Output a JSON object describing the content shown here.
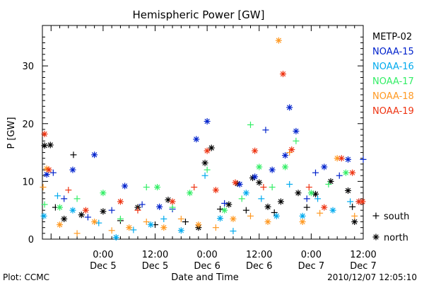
{
  "chart_data": {
    "type": "scatter",
    "title": "Hemispheric Power [GW]",
    "xlabel": "Date and Time",
    "ylabel": "P [GW]",
    "ylim": [
      0,
      37
    ],
    "xlim": [
      "2010-12-04 10:00",
      "2010-12-07 12:00"
    ],
    "xticks": [
      {
        "x": "2010-12-05 00:00",
        "time": "0:00",
        "day": "Dec 5"
      },
      {
        "x": "2010-12-05 12:00",
        "time": "12:00",
        "day": "Dec 5"
      },
      {
        "x": "2010-12-06 00:00",
        "time": "0:00",
        "day": "Dec 6"
      },
      {
        "x": "2010-12-06 12:00",
        "time": "12:00",
        "day": "Dec 6"
      },
      {
        "x": "2010-12-07 00:00",
        "time": "0:00",
        "day": "Dec 7"
      },
      {
        "x": "2010-12-07 12:00",
        "time": "12:00",
        "day": "Dec 7"
      }
    ],
    "yticks": [
      0,
      10,
      20,
      30
    ],
    "grid": false,
    "legend_position": "right",
    "marker_legend": [
      {
        "symbol": "+",
        "label": "south"
      },
      {
        "symbol": "*",
        "label": "north"
      }
    ],
    "series": [
      {
        "name": "METP-02",
        "color": "#000000",
        "points": [
          {
            "x": "2010-12-04 10:30",
            "y": 16.2,
            "m": "*"
          },
          {
            "x": "2010-12-04 11:50",
            "y": 16.3,
            "m": "*"
          },
          {
            "x": "2010-12-04 13:00",
            "y": 5.5,
            "m": "+"
          },
          {
            "x": "2010-12-04 15:00",
            "y": 3.5,
            "m": "*"
          },
          {
            "x": "2010-12-04 17:10",
            "y": 14.6,
            "m": "+"
          },
          {
            "x": "2010-12-04 19:00",
            "y": 4.2,
            "m": "*"
          },
          {
            "x": "2010-12-05 00:00",
            "y": 4.8,
            "m": "*"
          },
          {
            "x": "2010-12-05 04:00",
            "y": 3.2,
            "m": "+"
          },
          {
            "x": "2010-12-05 08:00",
            "y": 5.5,
            "m": "*"
          },
          {
            "x": "2010-12-05 12:00",
            "y": 2.5,
            "m": "+"
          },
          {
            "x": "2010-12-05 15:00",
            "y": 6.8,
            "m": "*"
          },
          {
            "x": "2010-12-05 19:00",
            "y": 3.0,
            "m": "+"
          },
          {
            "x": "2010-12-05 22:00",
            "y": 2.0,
            "m": "*"
          },
          {
            "x": "2010-12-05 23:30",
            "y": 13.2,
            "m": "*"
          },
          {
            "x": "2010-12-06 01:00",
            "y": 15.8,
            "m": "*"
          },
          {
            "x": "2010-12-06 03:00",
            "y": 5.2,
            "m": "+"
          },
          {
            "x": "2010-12-06 05:00",
            "y": 6.0,
            "m": "*"
          },
          {
            "x": "2010-12-06 07:00",
            "y": 9.6,
            "m": "*"
          },
          {
            "x": "2010-12-06 09:00",
            "y": 5.0,
            "m": "+"
          },
          {
            "x": "2010-12-06 10:30",
            "y": 10.6,
            "m": "*"
          },
          {
            "x": "2010-12-06 12:00",
            "y": 9.8,
            "m": "*"
          },
          {
            "x": "2010-12-06 14:00",
            "y": 5.6,
            "m": "*"
          },
          {
            "x": "2010-12-06 15:30",
            "y": 4.6,
            "m": "+"
          },
          {
            "x": "2010-12-06 17:00",
            "y": 6.5,
            "m": "*"
          },
          {
            "x": "2010-12-06 21:00",
            "y": 8.0,
            "m": "*"
          },
          {
            "x": "2010-12-06 23:00",
            "y": 5.5,
            "m": "+"
          },
          {
            "x": "2010-12-07 01:00",
            "y": 7.8,
            "m": "*"
          },
          {
            "x": "2010-12-07 04:30",
            "y": 10.0,
            "m": "*"
          },
          {
            "x": "2010-12-07 08:30",
            "y": 8.4,
            "m": "*"
          },
          {
            "x": "2010-12-07 09:30",
            "y": 5.6,
            "m": "+"
          },
          {
            "x": "2010-12-07 10:00",
            "y": 3.0,
            "m": "*"
          }
        ]
      },
      {
        "name": "NOAA-15",
        "color": "#0022cc",
        "points": [
          {
            "x": "2010-12-04 11:00",
            "y": 11.2,
            "m": "*"
          },
          {
            "x": "2010-12-04 12:30",
            "y": 11.5,
            "m": "+"
          },
          {
            "x": "2010-12-04 15:00",
            "y": 7.0,
            "m": "+"
          },
          {
            "x": "2010-12-04 17:00",
            "y": 12.0,
            "m": "*"
          },
          {
            "x": "2010-12-04 20:30",
            "y": 3.8,
            "m": "+"
          },
          {
            "x": "2010-12-04 22:00",
            "y": 14.6,
            "m": "*"
          },
          {
            "x": "2010-12-05 02:00",
            "y": 5.0,
            "m": "+"
          },
          {
            "x": "2010-12-05 05:00",
            "y": 9.2,
            "m": "*"
          },
          {
            "x": "2010-12-05 09:00",
            "y": 6.0,
            "m": "+"
          },
          {
            "x": "2010-12-05 13:00",
            "y": 5.6,
            "m": "*"
          },
          {
            "x": "2010-12-05 16:00",
            "y": 5.2,
            "m": "+"
          },
          {
            "x": "2010-12-05 21:30",
            "y": 17.3,
            "m": "*"
          },
          {
            "x": "2010-12-06 00:00",
            "y": 20.4,
            "m": "*"
          },
          {
            "x": "2010-12-06 04:00",
            "y": 6.2,
            "m": "+"
          },
          {
            "x": "2010-12-06 07:30",
            "y": 9.5,
            "m": "*"
          },
          {
            "x": "2010-12-06 11:00",
            "y": 10.8,
            "m": "*"
          },
          {
            "x": "2010-12-06 13:30",
            "y": 18.9,
            "m": "+"
          },
          {
            "x": "2010-12-06 15:00",
            "y": 12.0,
            "m": "*"
          },
          {
            "x": "2010-12-06 18:00",
            "y": 14.5,
            "m": "*"
          },
          {
            "x": "2010-12-06 19:00",
            "y": 22.8,
            "m": "*"
          },
          {
            "x": "2010-12-06 20:30",
            "y": 18.7,
            "m": "*"
          },
          {
            "x": "2010-12-06 23:00",
            "y": 7.0,
            "m": "+"
          },
          {
            "x": "2010-12-07 01:00",
            "y": 11.5,
            "m": "+"
          },
          {
            "x": "2010-12-07 03:00",
            "y": 12.5,
            "m": "*"
          },
          {
            "x": "2010-12-07 06:30",
            "y": 11.0,
            "m": "+"
          },
          {
            "x": "2010-12-07 08:30",
            "y": 13.8,
            "m": "*"
          },
          {
            "x": "2010-12-07 11:00",
            "y": 6.5,
            "m": "+"
          },
          {
            "x": "2010-12-07 12:00",
            "y": 13.8,
            "m": "+"
          }
        ]
      },
      {
        "name": "NOAA-16",
        "color": "#00aaee",
        "points": [
          {
            "x": "2010-12-04 10:20",
            "y": 4.0,
            "m": "*"
          },
          {
            "x": "2010-12-04 13:30",
            "y": 7.5,
            "m": "+"
          },
          {
            "x": "2010-12-04 17:00",
            "y": 5.0,
            "m": "*"
          },
          {
            "x": "2010-12-04 23:00",
            "y": 2.8,
            "m": "+"
          },
          {
            "x": "2010-12-05 03:00",
            "y": 0.3,
            "m": "*"
          },
          {
            "x": "2010-12-05 07:00",
            "y": 1.6,
            "m": "+"
          },
          {
            "x": "2010-12-05 11:00",
            "y": 2.5,
            "m": "*"
          },
          {
            "x": "2010-12-05 14:00",
            "y": 3.5,
            "m": "+"
          },
          {
            "x": "2010-12-05 18:00",
            "y": 1.5,
            "m": "*"
          },
          {
            "x": "2010-12-05 23:30",
            "y": 11.0,
            "m": "+"
          },
          {
            "x": "2010-12-06 03:00",
            "y": 3.6,
            "m": "*"
          },
          {
            "x": "2010-12-06 06:00",
            "y": 1.4,
            "m": "+"
          },
          {
            "x": "2010-12-06 09:00",
            "y": 8.0,
            "m": "*"
          },
          {
            "x": "2010-12-06 12:30",
            "y": 7.0,
            "m": "+"
          },
          {
            "x": "2010-12-06 16:00",
            "y": 4.0,
            "m": "*"
          },
          {
            "x": "2010-12-06 19:00",
            "y": 9.5,
            "m": "+"
          },
          {
            "x": "2010-12-06 22:00",
            "y": 4.0,
            "m": "*"
          },
          {
            "x": "2010-12-07 01:30",
            "y": 7.0,
            "m": "+"
          },
          {
            "x": "2010-12-07 05:00",
            "y": 5.0,
            "m": "*"
          },
          {
            "x": "2010-12-07 09:00",
            "y": 6.5,
            "m": "+"
          }
        ]
      },
      {
        "name": "NOAA-17",
        "color": "#33ee66",
        "points": [
          {
            "x": "2010-12-04 10:30",
            "y": 6.0,
            "m": "+"
          },
          {
            "x": "2010-12-04 14:00",
            "y": 5.5,
            "m": "*"
          },
          {
            "x": "2010-12-04 18:00",
            "y": 7.0,
            "m": "+"
          },
          {
            "x": "2010-12-05 00:00",
            "y": 8.0,
            "m": "*"
          },
          {
            "x": "2010-12-05 04:00",
            "y": 3.5,
            "m": "+"
          },
          {
            "x": "2010-12-05 10:00",
            "y": 9.0,
            "m": "+"
          },
          {
            "x": "2010-12-05 12:30",
            "y": 9.0,
            "m": "*"
          },
          {
            "x": "2010-12-05 16:00",
            "y": 5.5,
            "m": "+"
          },
          {
            "x": "2010-12-05 20:00",
            "y": 8.0,
            "m": "*"
          },
          {
            "x": "2010-12-06 00:00",
            "y": 12.0,
            "m": "+"
          },
          {
            "x": "2010-12-06 04:00",
            "y": 5.0,
            "m": "*"
          },
          {
            "x": "2010-12-06 08:00",
            "y": 7.0,
            "m": "+"
          },
          {
            "x": "2010-12-06 10:00",
            "y": 19.8,
            "m": "+"
          },
          {
            "x": "2010-12-06 12:00",
            "y": 12.5,
            "m": "*"
          },
          {
            "x": "2010-12-06 15:00",
            "y": 9.0,
            "m": "+"
          },
          {
            "x": "2010-12-06 18:00",
            "y": 12.5,
            "m": "*"
          },
          {
            "x": "2010-12-06 20:30",
            "y": 17.0,
            "m": "+"
          },
          {
            "x": "2010-12-07 00:00",
            "y": 8.0,
            "m": "*"
          },
          {
            "x": "2010-12-07 04:00",
            "y": 9.5,
            "m": "+"
          },
          {
            "x": "2010-12-07 08:00",
            "y": 11.5,
            "m": "*"
          }
        ]
      },
      {
        "name": "NOAA-18",
        "color": "#ff9922",
        "points": [
          {
            "x": "2010-12-04 10:10",
            "y": 9.0,
            "m": "+"
          },
          {
            "x": "2010-12-04 11:00",
            "y": 12.2,
            "m": "*"
          },
          {
            "x": "2010-12-04 14:00",
            "y": 2.5,
            "m": "*"
          },
          {
            "x": "2010-12-04 18:00",
            "y": 1.0,
            "m": "+"
          },
          {
            "x": "2010-12-04 22:00",
            "y": 3.0,
            "m": "*"
          },
          {
            "x": "2010-12-05 02:00",
            "y": 1.5,
            "m": "+"
          },
          {
            "x": "2010-12-05 06:00",
            "y": 2.0,
            "m": "*"
          },
          {
            "x": "2010-12-05 10:00",
            "y": 3.0,
            "m": "+"
          },
          {
            "x": "2010-12-05 14:00",
            "y": 2.0,
            "m": "*"
          },
          {
            "x": "2010-12-05 18:00",
            "y": 3.5,
            "m": "+"
          },
          {
            "x": "2010-12-05 22:00",
            "y": 2.5,
            "m": "*"
          },
          {
            "x": "2010-12-06 02:00",
            "y": 2.0,
            "m": "+"
          },
          {
            "x": "2010-12-06 06:00",
            "y": 3.5,
            "m": "*"
          },
          {
            "x": "2010-12-06 10:00",
            "y": 4.0,
            "m": "+"
          },
          {
            "x": "2010-12-06 14:00",
            "y": 3.0,
            "m": "*"
          },
          {
            "x": "2010-12-06 16:30",
            "y": 34.4,
            "m": "*"
          },
          {
            "x": "2010-12-06 19:00",
            "y": 15.0,
            "m": "+"
          },
          {
            "x": "2010-12-06 22:00",
            "y": 3.0,
            "m": "*"
          },
          {
            "x": "2010-12-07 02:00",
            "y": 4.5,
            "m": "+"
          },
          {
            "x": "2010-12-07 06:00",
            "y": 14.0,
            "m": "*"
          },
          {
            "x": "2010-12-07 10:00",
            "y": 4.0,
            "m": "+"
          }
        ]
      },
      {
        "name": "NOAA-19",
        "color": "#ee3311",
        "points": [
          {
            "x": "2010-12-04 10:30",
            "y": 18.2,
            "m": "*"
          },
          {
            "x": "2010-12-04 11:30",
            "y": 12.0,
            "m": "*"
          },
          {
            "x": "2010-12-04 16:00",
            "y": 8.5,
            "m": "+"
          },
          {
            "x": "2010-12-04 20:00",
            "y": 5.0,
            "m": "*"
          },
          {
            "x": "2010-12-05 04:00",
            "y": 6.5,
            "m": "*"
          },
          {
            "x": "2010-12-05 08:00",
            "y": 5.0,
            "m": "+"
          },
          {
            "x": "2010-12-05 16:00",
            "y": 6.5,
            "m": "*"
          },
          {
            "x": "2010-12-05 21:00",
            "y": 9.0,
            "m": "+"
          },
          {
            "x": "2010-12-06 00:00",
            "y": 15.3,
            "m": "*"
          },
          {
            "x": "2010-12-06 02:00",
            "y": 8.5,
            "m": "*"
          },
          {
            "x": "2010-12-06 06:30",
            "y": 9.8,
            "m": "*"
          },
          {
            "x": "2010-12-06 11:00",
            "y": 15.3,
            "m": "*"
          },
          {
            "x": "2010-12-06 13:00",
            "y": 9.0,
            "m": "+"
          },
          {
            "x": "2010-12-06 17:30",
            "y": 28.6,
            "m": "*"
          },
          {
            "x": "2010-12-06 19:30",
            "y": 15.5,
            "m": "*"
          },
          {
            "x": "2010-12-06 23:30",
            "y": 9.0,
            "m": "+"
          },
          {
            "x": "2010-12-07 03:00",
            "y": 5.5,
            "m": "*"
          },
          {
            "x": "2010-12-07 07:00",
            "y": 14.0,
            "m": "*"
          },
          {
            "x": "2010-12-07 09:30",
            "y": 11.5,
            "m": "*"
          },
          {
            "x": "2010-12-07 11:00",
            "y": 6.5,
            "m": "*"
          },
          {
            "x": "2010-12-07 11:50",
            "y": 6.5,
            "m": "*"
          }
        ]
      }
    ]
  },
  "footer": {
    "plot_label": "Plot: CCMC",
    "timestamp": "2010/12/07 12:05:10"
  }
}
